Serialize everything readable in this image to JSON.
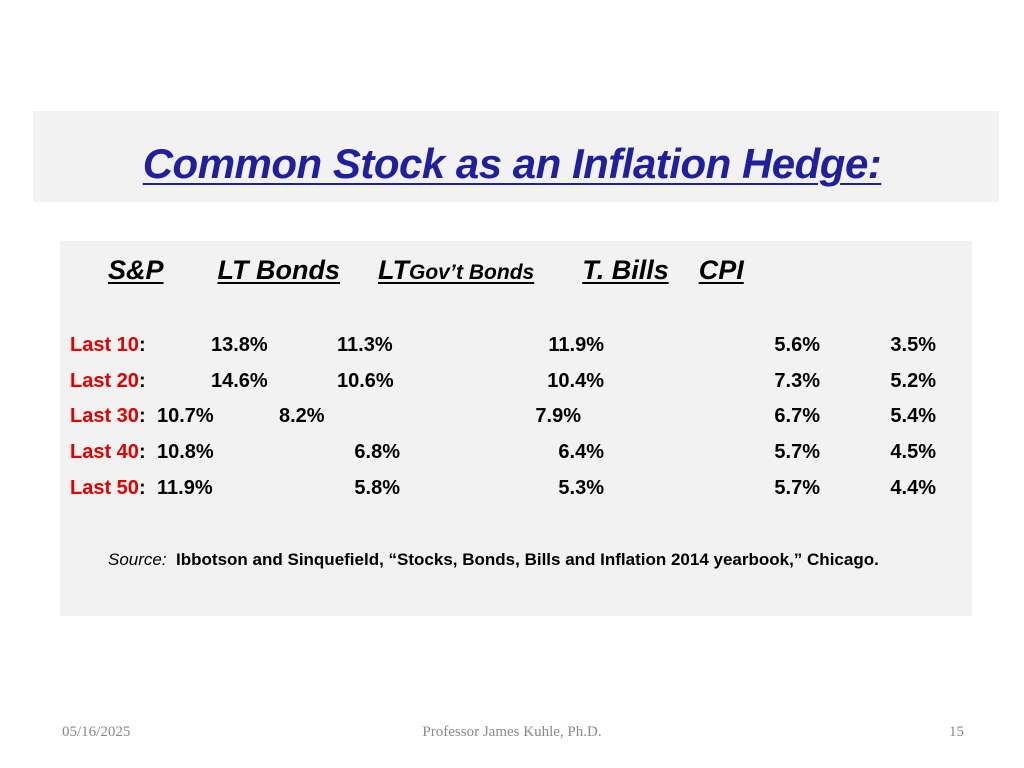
{
  "slide": {
    "title": "Common Stock as an Inflation Hedge:",
    "headers": {
      "sp": "S&P",
      "lt_bonds": "LT Bonds",
      "lt": "LT",
      "govt_bonds": "Gov’t Bonds",
      "tbills": "T. Bills",
      "cpi": "CPI"
    },
    "rows": [
      {
        "label": "Last 10",
        "colon": ":",
        "sp": "13.8%",
        "lt_bonds": "11.3%",
        "govt_bonds": "11.9%",
        "tbills": "5.6%",
        "cpi": "3.5%"
      },
      {
        "label": "Last 20",
        "colon": ":",
        "sp": "14.6%",
        "lt_bonds": "10.6%",
        "govt_bonds": "10.4%",
        "tbills": "7.3%",
        "cpi": "5.2%"
      },
      {
        "label": "Last 30",
        "colon": ":",
        "sp": "10.7%",
        "lt_bonds": "8.2%",
        "govt_bonds": "7.9%",
        "tbills": "6.7%",
        "cpi": "5.4%"
      },
      {
        "label": "Last 40",
        "colon": ":",
        "sp": "10.8%",
        "lt_bonds": "6.8%",
        "govt_bonds": "6.4%",
        "tbills": "5.7%",
        "cpi": "4.5%"
      },
      {
        "label": "Last 50",
        "colon": ":",
        "sp": "11.9%",
        "lt_bonds": "5.8%",
        "govt_bonds": "5.3%",
        "tbills": "5.7%",
        "cpi": "4.4%"
      }
    ],
    "source": {
      "label": "Source:",
      "text": "Ibbotson and Sinquefield, “Stocks, Bonds, Bills and Inflation 2014  yearbook,” Chicago."
    }
  },
  "footer": {
    "date": "05/16/2025",
    "author": "Professor James Kuhle, Ph.D.",
    "page": "15"
  },
  "colors": {
    "title": "#1f1fa0",
    "row_label": "#e00000",
    "panel_background": "#f2f2f2",
    "footer_text": "#8a8a8a"
  }
}
